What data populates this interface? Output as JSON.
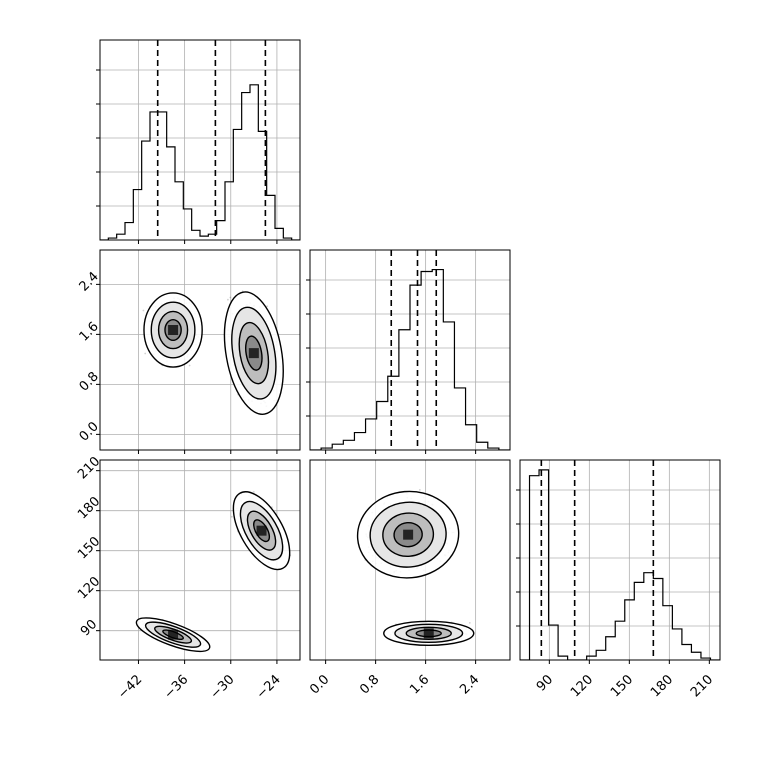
{
  "chart_data": [
    {
      "type": "histogram",
      "panel": "row1-col1",
      "x_ticks": [
        -42,
        -36,
        -30,
        -24
      ],
      "xlim": [
        -47,
        -21
      ],
      "ylim": [
        0,
        1.0
      ],
      "steps": [
        0.0,
        0.01,
        0.03,
        0.09,
        0.26,
        0.51,
        0.66,
        0.66,
        0.48,
        0.3,
        0.16,
        0.05,
        0.02,
        0.03,
        0.1,
        0.3,
        0.57,
        0.76,
        0.8,
        0.56,
        0.23,
        0.06,
        0.01,
        0.0
      ],
      "quantile_lines": [
        -39.5,
        -32.0,
        -25.5
      ],
      "grid": true
    },
    {
      "type": "scatter-density",
      "panel": "row2-col1",
      "x_ticks": [
        -42,
        -36,
        -30,
        -24
      ],
      "y_ticks": [
        "2.4",
        "1.6",
        "0.8",
        "0.0"
      ],
      "y_tick_values": [
        2.4,
        1.6,
        0.8,
        0.0
      ],
      "xlim": [
        -47,
        -21
      ],
      "ylim": [
        -0.25,
        2.95
      ],
      "clusters": [
        {
          "center": [
            -37.5,
            1.67
          ],
          "spread": [
            2.1,
            0.33
          ],
          "tilt_deg": 0
        },
        {
          "center": [
            -27.0,
            1.3
          ],
          "spread": [
            2.0,
            0.55
          ],
          "tilt_deg": -10
        }
      ],
      "grid": true
    },
    {
      "type": "histogram",
      "panel": "row2-col2",
      "x_ticks": [
        "0.0",
        "0.8",
        "1.6",
        "2.4"
      ],
      "xlim": [
        -0.25,
        2.95
      ],
      "ylim": [
        0,
        1.0
      ],
      "steps": [
        0.0,
        0.01,
        0.03,
        0.05,
        0.09,
        0.16,
        0.25,
        0.38,
        0.62,
        0.85,
        0.92,
        0.93,
        0.66,
        0.32,
        0.13,
        0.04,
        0.01,
        0.0
      ],
      "quantile_lines": [
        1.05,
        1.47,
        1.77
      ],
      "grid": true
    },
    {
      "type": "scatter-density",
      "panel": "row3-col1",
      "x_ticks": [
        "−42",
        "−36",
        "−30",
        "−24"
      ],
      "x_tick_values": [
        -42,
        -36,
        -30,
        -24
      ],
      "y_ticks": [
        210,
        180,
        150,
        120,
        90
      ],
      "xlim": [
        -47,
        -21
      ],
      "ylim": [
        68,
        218
      ],
      "clusters": [
        {
          "center": [
            -37.5,
            87
          ],
          "spread": [
            2.8,
            4.5
          ],
          "tilt_deg": 20
        },
        {
          "center": [
            -26.0,
            165
          ],
          "spread": [
            1.5,
            18
          ],
          "tilt_deg": -30
        }
      ],
      "grid": true
    },
    {
      "type": "scatter-density",
      "panel": "row3-col2",
      "x_ticks": [
        "0.0",
        "0.8",
        "1.6",
        "2.4"
      ],
      "x_tick_values": [
        0.0,
        0.8,
        1.6,
        2.4
      ],
      "xlim": [
        -0.25,
        2.95
      ],
      "ylim": [
        68,
        218
      ],
      "clusters": [
        {
          "center": [
            1.32,
            162
          ],
          "spread": [
            0.45,
            18
          ],
          "tilt_deg": -5
        },
        {
          "center": [
            1.65,
            88
          ],
          "spread": [
            0.4,
            5
          ],
          "tilt_deg": 0
        }
      ],
      "grid": true
    },
    {
      "type": "histogram",
      "panel": "row3-col3",
      "x_ticks": [
        90,
        120,
        150,
        180,
        210
      ],
      "xlim": [
        68,
        218
      ],
      "ylim": [
        0,
        1.0
      ],
      "steps": [
        0.0,
        0.95,
        0.98,
        0.18,
        0.02,
        0.0,
        0.0,
        0.02,
        0.05,
        0.12,
        0.2,
        0.31,
        0.4,
        0.45,
        0.42,
        0.28,
        0.16,
        0.08,
        0.04,
        0.01,
        0.0
      ],
      "quantile_lines": [
        84,
        109,
        168
      ],
      "grid": true
    }
  ]
}
